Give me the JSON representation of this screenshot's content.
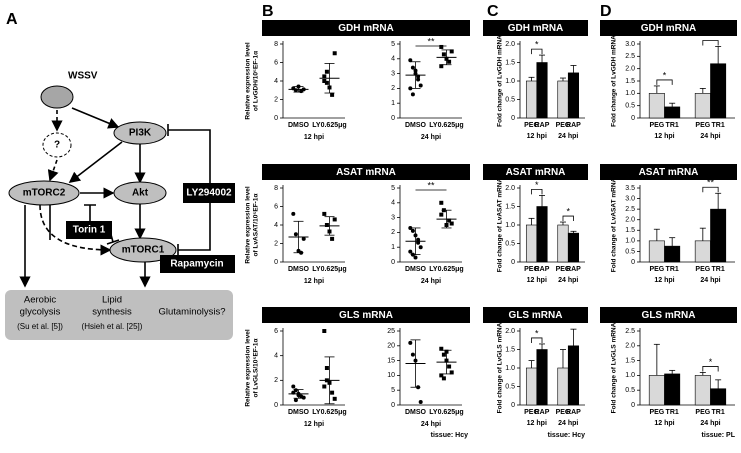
{
  "panel_labels": [
    "A",
    "B",
    "C",
    "D"
  ],
  "diagram": {
    "nodes": {
      "wssv": "WSSV",
      "unknown": "?",
      "pi3k": "PI3K",
      "mtorc2": "mTORC2",
      "akt": "Akt",
      "mtorc1": "mTORC1"
    },
    "inhibitors": {
      "ly": "LY294002",
      "torin": "Torin 1",
      "rapamycin": "Rapamycin"
    },
    "outcomes": [
      {
        "lines": [
          "Aerobic",
          "glycolysis"
        ],
        "ref": "(Su et al. [5])"
      },
      {
        "lines": [
          "Lipid",
          "synthesis"
        ],
        "ref": "(Hsieh et al. [25])"
      },
      {
        "lines": [
          "Glutaminolysis?"
        ]
      }
    ]
  },
  "chart_data": [
    {
      "type": "scatter",
      "title": "GDH mRNA",
      "ylabel": [
        "Relative expression level",
        "of LvGDH/10⁵EF-1α"
      ],
      "categories": [
        "DMSO",
        "LY0.625μg"
      ],
      "xlabel": "12 hpi",
      "ylim": [
        0,
        8
      ],
      "yticks": [
        0,
        2,
        4,
        6,
        8
      ],
      "values": [
        [
          3.2,
          3.0,
          3.4,
          2.9,
          3.1
        ],
        [
          4.5,
          5.0,
          3.3,
          2.5,
          7.0,
          4.0,
          3.8
        ]
      ],
      "means": [
        3.1,
        4.3
      ],
      "errors": [
        0.3,
        1.6
      ]
    },
    {
      "type": "scatter",
      "categories": [
        "DMSO",
        "LY0.625μg"
      ],
      "xlabel": "24 hpi",
      "ylim": [
        0,
        5
      ],
      "yticks": [
        0,
        1,
        2,
        3,
        4,
        5
      ],
      "values": [
        [
          3.9,
          3.4,
          3.0,
          2.8,
          2.2,
          2.0,
          1.6,
          3.2,
          2.6
        ],
        [
          4.8,
          4.3,
          4.0,
          3.8,
          4.5,
          3.5
        ]
      ],
      "means": [
        2.9,
        4.1
      ],
      "errors": [
        0.9,
        0.5
      ],
      "annotations": [
        {
          "label": "**",
          "between": [
            0,
            1
          ]
        }
      ]
    },
    {
      "type": "scatter",
      "title": "ASAT mRNA",
      "ylabel": [
        "Relative expression level",
        "of LvASAT/10⁵EF-1α"
      ],
      "categories": [
        "DMSO",
        "LY0.625μg"
      ],
      "xlabel": "12 hpi",
      "ylim": [
        0,
        8
      ],
      "yticks": [
        0,
        2,
        4,
        6,
        8
      ],
      "values": [
        [
          5.2,
          3.0,
          1.2,
          1.0,
          2.5
        ],
        [
          5.2,
          4.0,
          3.3,
          2.5,
          4.6
        ]
      ],
      "means": [
        2.7,
        3.9
      ],
      "errors": [
        1.7,
        1.0
      ]
    },
    {
      "type": "scatter",
      "categories": [
        "DMSO",
        "LY0.625μg"
      ],
      "xlabel": "24 hpi",
      "ylim": [
        0,
        5
      ],
      "yticks": [
        0,
        1,
        2,
        3,
        4,
        5
      ],
      "values": [
        [
          2.3,
          2.1,
          1.8,
          1.3,
          1.0,
          0.7,
          0.5,
          0.3,
          1.5
        ],
        [
          4.0,
          3.5,
          2.5,
          2.8,
          2.6,
          3.2
        ]
      ],
      "means": [
        1.4,
        2.9
      ],
      "errors": [
        0.9,
        0.6
      ],
      "annotations": [
        {
          "label": "**",
          "between": [
            0,
            1
          ]
        }
      ]
    },
    {
      "type": "scatter",
      "title": "GLS mRNA",
      "ylabel": [
        "Relative expression level",
        "of LvGLS/10⁵EF-1α"
      ],
      "categories": [
        "DMSO",
        "LY0.625μg"
      ],
      "xlabel": "12 hpi",
      "ylim": [
        0,
        6
      ],
      "yticks": [
        0,
        2,
        4,
        6
      ],
      "values": [
        [
          1.5,
          1.2,
          0.9,
          0.7,
          0.6,
          1.0,
          0.4,
          0.8
        ],
        [
          6.0,
          2.0,
          1.8,
          1.0,
          0.5,
          1.5,
          3.0
        ]
      ],
      "means": [
        0.9,
        2.0
      ],
      "errors": [
        0.35,
        1.9
      ]
    },
    {
      "type": "scatter",
      "categories": [
        "DMSO",
        "LY0.625μg"
      ],
      "xlabel": "24 hpi",
      "note": "tissue: Hcy",
      "ylim": [
        0,
        25
      ],
      "yticks": [
        0,
        5,
        10,
        15,
        20,
        25
      ],
      "values": [
        [
          21,
          17,
          15,
          6,
          1
        ],
        [
          19,
          17,
          15,
          13,
          11,
          10,
          9,
          18
        ]
      ],
      "means": [
        14,
        14.5
      ],
      "errors": [
        8,
        4
      ]
    },
    {
      "type": "bar",
      "title": "GDH mRNA",
      "ylabel": [
        "Fold change of LvGDH mRNA"
      ],
      "categories": [
        "PEG",
        "RAP",
        "PEG",
        "RAP"
      ],
      "groups": [
        "12 hpi",
        "24 hpi"
      ],
      "colors": [
        "#d9d9d9",
        "#000000",
        "#d9d9d9",
        "#000000"
      ],
      "ylim": [
        0,
        2
      ],
      "yticks": [
        0,
        0.5,
        {
          "value": 1,
          "label": "1.0"
        },
        1.5,
        {
          "value": 2,
          "label": "2.0"
        }
      ],
      "values": [
        1.0,
        1.5,
        1.0,
        1.22
      ],
      "errors": [
        0.1,
        0.2,
        0.08,
        0.2
      ],
      "annotations": [
        {
          "label": "*",
          "between": [
            0,
            1
          ]
        }
      ]
    },
    {
      "type": "bar",
      "title": "ASAT mRNA",
      "ylabel": [
        "Fold change of LvASAT mRNA"
      ],
      "categories": [
        "PEG",
        "RAP",
        "PEG",
        "RAP"
      ],
      "groups": [
        "12 hpi",
        "24 hpi"
      ],
      "colors": [
        "#d9d9d9",
        "#000000",
        "#d9d9d9",
        "#000000"
      ],
      "ylim": [
        0,
        2
      ],
      "yticks": [
        0,
        0.5,
        {
          "value": 1,
          "label": "1.0"
        },
        1.5,
        {
          "value": 2,
          "label": "2.0"
        }
      ],
      "values": [
        1.0,
        1.5,
        1.0,
        0.78
      ],
      "errors": [
        0.18,
        0.3,
        0.08,
        0.05
      ],
      "annotations": [
        {
          "label": "*",
          "between": [
            0,
            1
          ]
        },
        {
          "label": "*",
          "between": [
            2,
            3
          ]
        }
      ]
    },
    {
      "type": "bar",
      "title": "GLS mRNA",
      "ylabel": [
        "Fold change of LvGLS mRNA"
      ],
      "categories": [
        "PEG",
        "RAP",
        "PEG",
        "RAP"
      ],
      "groups": [
        "12 hpi",
        "24 hpi"
      ],
      "note": "tissue: Hcy",
      "colors": [
        "#d9d9d9",
        "#000000",
        "#d9d9d9",
        "#000000"
      ],
      "ylim": [
        0,
        2
      ],
      "yticks": [
        0,
        0.5,
        {
          "value": 1,
          "label": "1.0"
        },
        1.5,
        {
          "value": 2,
          "label": "2.0"
        }
      ],
      "values": [
        1.0,
        1.5,
        1.0,
        1.6
      ],
      "errors": [
        0.2,
        0.15,
        0.5,
        0.45
      ],
      "annotations": [
        {
          "label": "*",
          "between": [
            0,
            1
          ]
        }
      ]
    },
    {
      "type": "bar",
      "title": "GDH mRNA",
      "ylabel": [
        "Fold change of LvGDH mRNA"
      ],
      "categories": [
        "PEG",
        "TR1",
        "PEG",
        "TR1"
      ],
      "groups": [
        "12 hpi",
        "24 hpi"
      ],
      "colors": [
        "#d9d9d9",
        "#000000",
        "#d9d9d9",
        "#000000"
      ],
      "ylim": [
        0,
        3
      ],
      "yticks": [
        0,
        0.5,
        {
          "value": 1,
          "label": "1.0"
        },
        1.5,
        {
          "value": 2,
          "label": "2.0"
        },
        2.5,
        {
          "value": 3,
          "label": "3.0"
        }
      ],
      "values": [
        1.0,
        0.45,
        1.0,
        2.2
      ],
      "errors": [
        0.3,
        0.15,
        0.2,
        0.7
      ],
      "annotations": [
        {
          "label": "*",
          "between": [
            0,
            1
          ]
        },
        {
          "label": "**",
          "between": [
            2,
            3
          ]
        }
      ]
    },
    {
      "type": "bar",
      "title": "ASAT mRNA",
      "ylabel": [
        "Fold change of LvASAT mRNA"
      ],
      "categories": [
        "PEG",
        "TR1",
        "PEG",
        "TR1"
      ],
      "groups": [
        "12 hpi",
        "24 hpi"
      ],
      "colors": [
        "#d9d9d9",
        "#000000",
        "#d9d9d9",
        "#000000"
      ],
      "ylim": [
        0,
        3.5
      ],
      "yticks": [
        0,
        0.5,
        {
          "value": 1,
          "label": "1.0"
        },
        1.5,
        {
          "value": 2,
          "label": "2.0"
        },
        2.5,
        {
          "value": 3,
          "label": "3.0"
        },
        3.5
      ],
      "values": [
        1.0,
        0.75,
        1.0,
        2.5
      ],
      "errors": [
        0.55,
        0.4,
        0.6,
        0.75
      ],
      "annotations": [
        {
          "label": "**",
          "between": [
            2,
            3
          ]
        }
      ]
    },
    {
      "type": "bar",
      "title": "GLS mRNA",
      "ylabel": [
        "Fold change of LvGLS mRNA"
      ],
      "categories": [
        "PEG",
        "TR1",
        "PEG",
        "TR1"
      ],
      "groups": [
        "12 hpi",
        "24 hpi"
      ],
      "note": "tissue: PL",
      "colors": [
        "#d9d9d9",
        "#000000",
        "#d9d9d9",
        "#000000"
      ],
      "ylim": [
        0,
        2.5
      ],
      "yticks": [
        0,
        0.5,
        {
          "value": 1,
          "label": "1.0"
        },
        1.5,
        {
          "value": 2,
          "label": "2.0"
        },
        2.5
      ],
      "values": [
        1.0,
        1.05,
        1.0,
        0.55
      ],
      "errors": [
        1.05,
        0.12,
        0.1,
        0.3
      ],
      "annotations": [
        {
          "label": "*",
          "between": [
            2,
            3
          ]
        }
      ]
    }
  ]
}
